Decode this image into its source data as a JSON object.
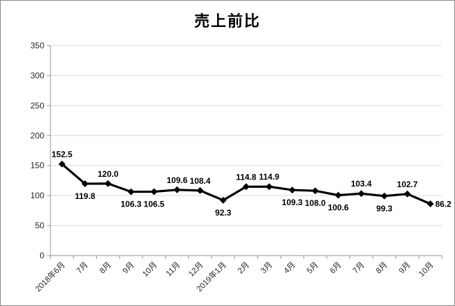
{
  "chart": {
    "title": "売上前比"
  },
  "chart_data": {
    "type": "line",
    "title": "売上前比",
    "categories": [
      "2018年6月",
      "7月",
      "8月",
      "9月",
      "10月",
      "11月",
      "12月",
      "2019年1月",
      "2月",
      "3月",
      "4月",
      "5月",
      "6月",
      "7月",
      "8月",
      "9月",
      "10月"
    ],
    "values": [
      152.5,
      119.8,
      120.0,
      106.3,
      106.5,
      109.6,
      108.4,
      92.3,
      114.8,
      114.9,
      109.3,
      108.0,
      100.6,
      103.4,
      99.3,
      102.7,
      86.2
    ],
    "value_labels": [
      "152.5",
      "119.8",
      "120.0",
      "106.3",
      "106.5",
      "109.6",
      "108.4",
      "92.3",
      "114.8",
      "114.9",
      "109.3",
      "108.0",
      "100.6",
      "103.4",
      "99.3",
      "102.7",
      "86.2"
    ],
    "label_positions": [
      "above",
      "below",
      "above",
      "below",
      "below",
      "above",
      "above",
      "below",
      "above",
      "above",
      "below",
      "below",
      "below",
      "above",
      "below",
      "above",
      "right"
    ],
    "yticks": [
      0,
      50,
      100,
      150,
      200,
      250,
      300,
      350
    ],
    "ylim": [
      0,
      350
    ],
    "xlabel": "",
    "ylabel": "",
    "grid": true,
    "legend": "none",
    "colors": {
      "series_line": "#000000",
      "marker": "#000000",
      "data_label": "#000000",
      "gridline": "#d9d9d9",
      "axis_line": "#a6a6a6",
      "tick_label": "#262626",
      "title": "#000000",
      "background": "#ffffff",
      "frame_border": "#8f8f8f"
    }
  }
}
